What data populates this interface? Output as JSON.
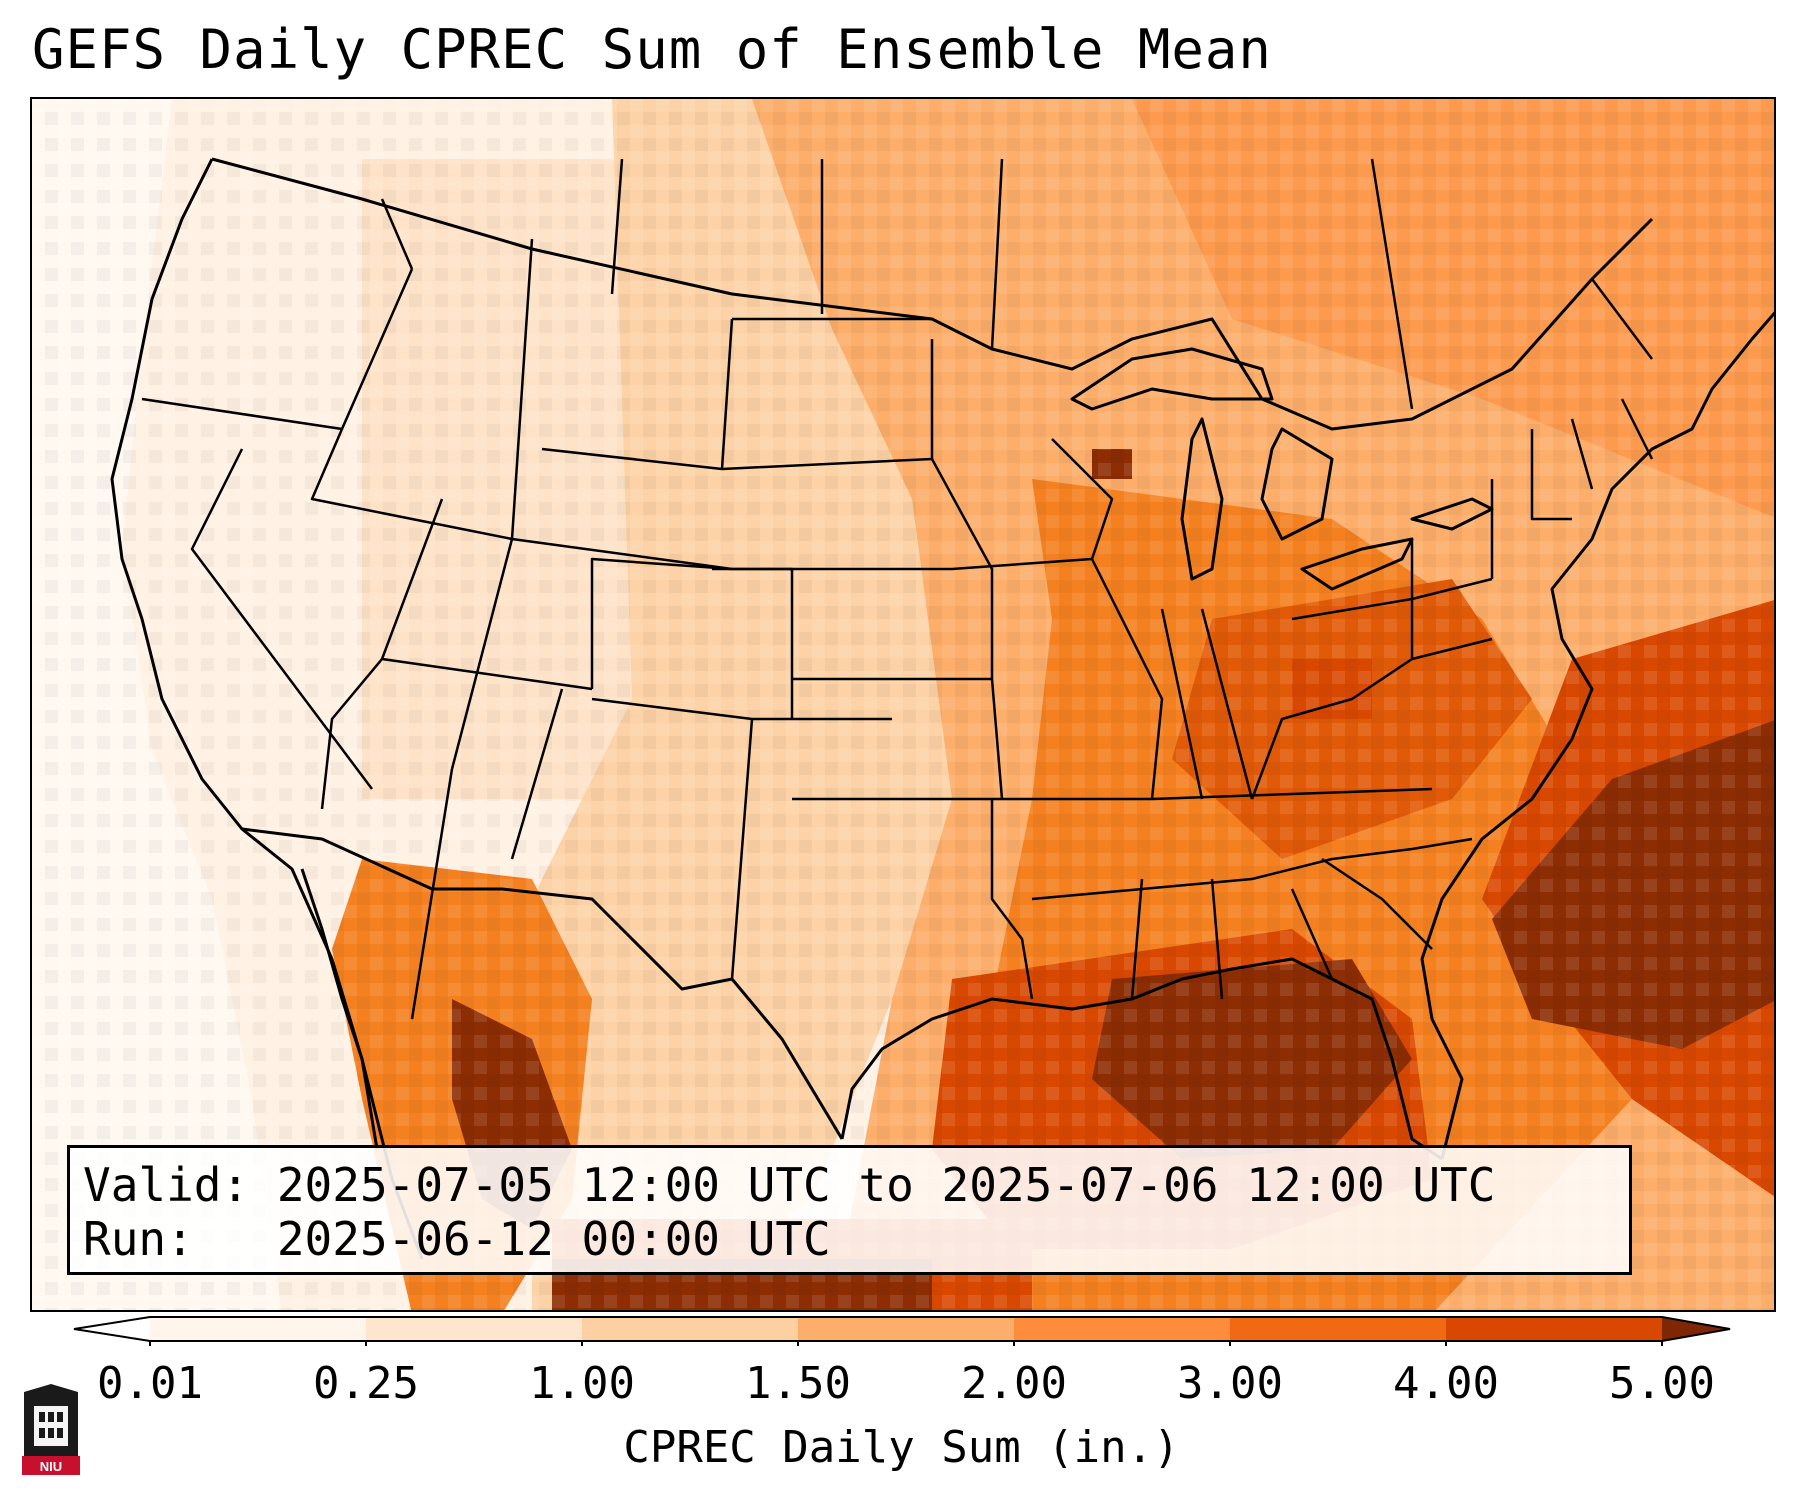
{
  "title": "GEFS Daily CPREC Sum of Ensemble Mean",
  "info": {
    "valid": "Valid: 2025-07-05 12:00 UTC to 2025-07-06 12:00 UTC",
    "run": "Run:   2025-06-12 00:00 UTC"
  },
  "colorbar": {
    "label": "CPREC Daily Sum (in.)",
    "ticks": [
      "0.01",
      "0.25",
      "1.00",
      "1.50",
      "2.00",
      "3.00",
      "4.00",
      "5.00"
    ],
    "colors": [
      "#fff5eb",
      "#fee6ce",
      "#fdd0a2",
      "#fdae6b",
      "#fd8d3c",
      "#f16913",
      "#d94801",
      "#8c2d04"
    ],
    "under_color": "#ffffff",
    "over_color": "#7f2704"
  },
  "map": {
    "projection": "Lambert Conformal",
    "region": "CONUS",
    "features": [
      "state-borders",
      "coastlines",
      "country-borders",
      "great-lakes"
    ]
  },
  "logo": {
    "text": "NIU",
    "color": "#c8102e"
  }
}
